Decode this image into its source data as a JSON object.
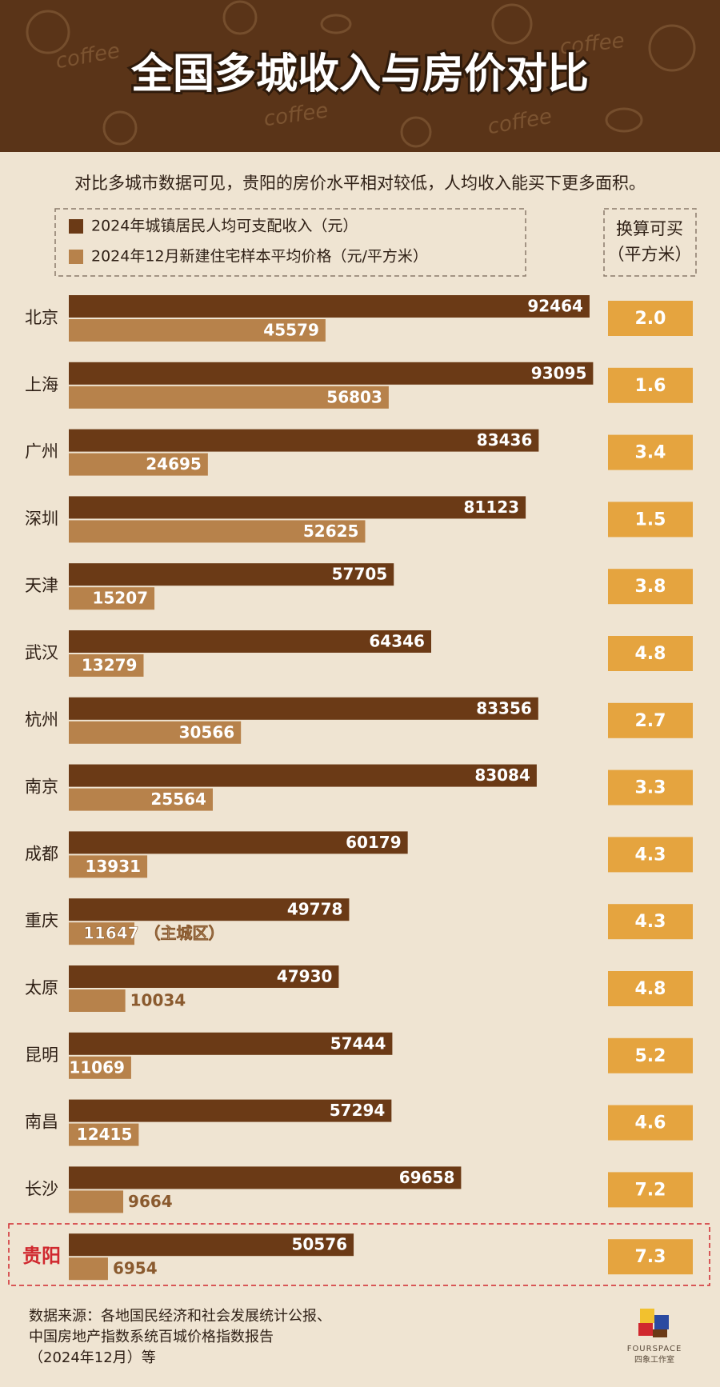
{
  "chart_data": {
    "type": "bar",
    "title": "全国多城收入与房价对比",
    "background_text": "coffee",
    "subtitle": "对比多城市数据可见，贵阳的房价水平相对较低，人均收入能买下更多面积。",
    "categories": [
      "北京",
      "上海",
      "广州",
      "深圳",
      "天津",
      "武汉",
      "杭州",
      "南京",
      "成都",
      "重庆",
      "太原",
      "昆明",
      "南昌",
      "长沙",
      "贵阳"
    ],
    "highlight_index": 14,
    "highlight_color": "#d0282e",
    "series": [
      {
        "name": "2024年城镇居民人均可支配收入（元）",
        "color": "#6b3a16",
        "values": [
          92464,
          93095,
          83436,
          81123,
          57705,
          64346,
          83356,
          83084,
          60179,
          49778,
          47930,
          57444,
          57294,
          69658,
          50576
        ]
      },
      {
        "name": "2024年12月新建住宅样本平均价格（元/平方米）",
        "color": "#b7824b",
        "values": [
          45579,
          56803,
          24695,
          52625,
          15207,
          13279,
          30566,
          25564,
          13931,
          11647,
          10034,
          11069,
          12415,
          9664,
          6954
        ],
        "value_labels": [
          "45579",
          "56803",
          "24695",
          "52625",
          "15207",
          "13279",
          "30566",
          "25564",
          "13931",
          "11647 （主城区）",
          "10034",
          "11069",
          "12415",
          "9664",
          "6954"
        ]
      }
    ],
    "xlim": [
      0,
      100000
    ],
    "area": {
      "header": [
        "换算可买",
        "（平方米）"
      ],
      "color": "#e5a43f",
      "values": [
        2.0,
        1.6,
        3.4,
        1.5,
        3.8,
        4.8,
        2.7,
        3.3,
        4.3,
        4.3,
        4.8,
        5.2,
        4.6,
        7.2,
        7.3
      ],
      "value_labels": [
        "2.0",
        "1.6",
        "3.4",
        "1.5",
        "3.8",
        "4.8",
        "2.7",
        "3.3",
        "4.3",
        "4.3",
        "4.8",
        "5.2",
        "4.6",
        "7.2",
        "7.3"
      ]
    },
    "source": [
      "数据来源：各地国民经济和社会发展统计公报、",
      "中国房地产指数系统百城价格指数报告",
      "（2024年12月）等"
    ],
    "logo": [
      "FOURSPACE",
      "四象工作室"
    ]
  }
}
